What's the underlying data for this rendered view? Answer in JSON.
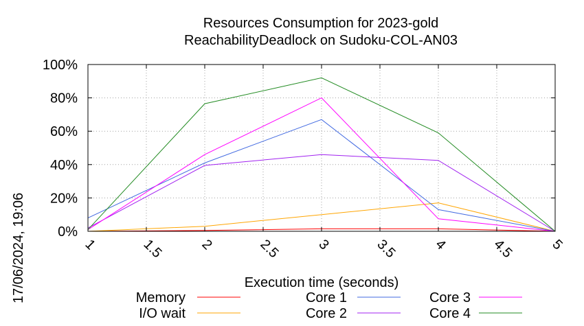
{
  "chart_data": {
    "type": "line",
    "title": "Resources Consumption for 2023-gold",
    "subtitle": "ReachabilityDeadlock on Sudoku-COL-AN03",
    "xlabel": "Execution time (seconds)",
    "ylabel": "",
    "timestamp": "17/06/2024, 19:06",
    "xlim": [
      1,
      5
    ],
    "ylim": [
      0,
      100
    ],
    "x_ticks": [
      1,
      1.5,
      2,
      2.5,
      3,
      3.5,
      4,
      4.5,
      5
    ],
    "y_ticks": [
      0,
      20,
      40,
      60,
      80,
      100
    ],
    "y_tick_labels": [
      "0%",
      "20%",
      "40%",
      "60%",
      "80%",
      "100%"
    ],
    "grid": true,
    "legend_position": "bottom",
    "x": [
      1,
      2,
      3,
      4,
      5
    ],
    "series": [
      {
        "name": "Memory",
        "color": "#ff0000",
        "values": [
          0,
          0.5,
          1.5,
          1.5,
          0
        ]
      },
      {
        "name": "I/O wait",
        "color": "#ffa500",
        "values": [
          0,
          3,
          10,
          17,
          0
        ]
      },
      {
        "name": "Core 1",
        "color": "#4169e1",
        "values": [
          8,
          41,
          67,
          13,
          0
        ]
      },
      {
        "name": "Core 2",
        "color": "#a020f0",
        "values": [
          2,
          39.5,
          46,
          42.5,
          0
        ]
      },
      {
        "name": "Core 3",
        "color": "#ff00ff",
        "values": [
          1,
          46,
          80,
          7.5,
          0
        ]
      },
      {
        "name": "Core 4",
        "color": "#228b22",
        "values": [
          1,
          76.5,
          92,
          59,
          0
        ]
      }
    ]
  }
}
